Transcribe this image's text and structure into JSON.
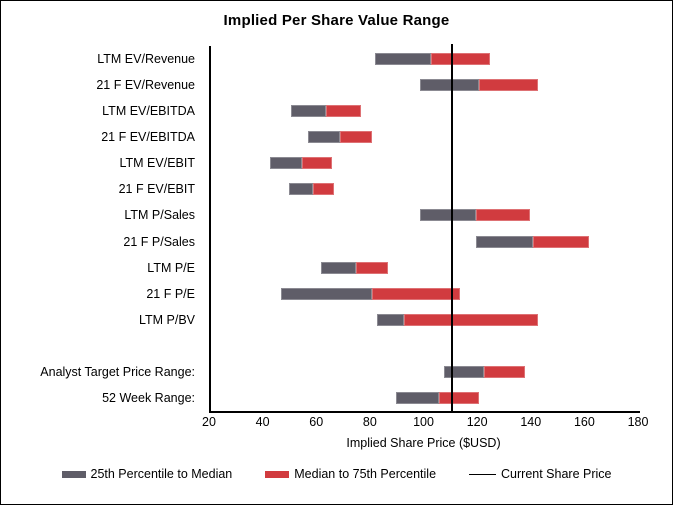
{
  "chart_data": {
    "type": "bar",
    "orientation": "horizontal",
    "title": "Implied Per Share Value Range",
    "xlabel": "Implied Share Price ($USD)",
    "xlim": [
      20,
      180
    ],
    "xticks": [
      20,
      40,
      60,
      80,
      100,
      120,
      140,
      160,
      180
    ],
    "grid": "off",
    "legend_position": "bottom",
    "current_share_price": 110,
    "series_colors": {
      "p25_to_median": "#5f5d68",
      "median_to_p75": "#d13b3f",
      "current_line": "#000000"
    },
    "rows": [
      {
        "label": "LTM EV/Revenue",
        "p25": 81,
        "median": 102,
        "p75": 124
      },
      {
        "label": "21 F EV/Revenue",
        "p25": 98,
        "median": 120,
        "p75": 142
      },
      {
        "label": "LTM EV/EBITDA",
        "p25": 50,
        "median": 63,
        "p75": 76
      },
      {
        "label": "21 F EV/EBITDA",
        "p25": 56,
        "median": 68,
        "p75": 80
      },
      {
        "label": "LTM EV/EBIT",
        "p25": 42,
        "median": 54,
        "p75": 65
      },
      {
        "label": "21 F EV/EBIT",
        "p25": 49,
        "median": 58,
        "p75": 66
      },
      {
        "label": "LTM P/Sales",
        "p25": 98,
        "median": 119,
        "p75": 139
      },
      {
        "label": "21 F P/Sales",
        "p25": 119,
        "median": 140,
        "p75": 161
      },
      {
        "label": "LTM P/E",
        "p25": 61,
        "median": 74,
        "p75": 86
      },
      {
        "label": "21 F P/E",
        "p25": 46,
        "median": 80,
        "p75": 113
      },
      {
        "label": "LTM P/BV",
        "p25": 82,
        "median": 92,
        "p75": 142
      },
      {
        "label": ""
      },
      {
        "label": "Analyst Target Price Range:",
        "p25": 107,
        "median": 122,
        "p75": 137
      },
      {
        "label": "52 Week Range:",
        "p25": 89,
        "median": 105,
        "p75": 120
      }
    ],
    "legend": [
      {
        "label": "25th Percentile to Median",
        "swatch": "bar",
        "color": "#5f5d68"
      },
      {
        "label": "Median to 75th Percentile",
        "swatch": "bar",
        "color": "#d13b3f"
      },
      {
        "label": "Current Share Price",
        "swatch": "line",
        "color": "#000000"
      }
    ]
  }
}
